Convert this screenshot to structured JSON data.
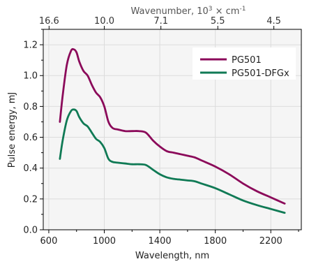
{
  "chart_data": {
    "type": "line",
    "xlabel": "Wavelength, nm",
    "ylabel": "Pulse energy, mJ",
    "xlim": [
      560,
      2420
    ],
    "ylim": [
      0.0,
      1.3
    ],
    "xticks": [
      600,
      1000,
      1400,
      1800,
      2200
    ],
    "xtick_labels": [
      "600",
      "1000",
      "1400",
      "1800",
      "2200"
    ],
    "yticks": [
      0.0,
      0.2,
      0.4,
      0.6,
      0.8,
      1.0,
      1.2
    ],
    "ytick_labels": [
      "0.0",
      "0.2",
      "0.4",
      "0.6",
      "0.8",
      "1.0",
      "1.2"
    ],
    "top_axis": {
      "title_main": "Wavenumber, 10",
      "title_sup": "3",
      "title_mid": " × cm",
      "title_sup2": "-1",
      "ticks_nm": [
        602,
        1000,
        1408,
        1818,
        2222
      ],
      "tick_labels": [
        "16.6",
        "10.0",
        "7.1",
        "5.5",
        "4.5"
      ]
    },
    "grid": true,
    "legend_position": "top-right",
    "series": [
      {
        "name": "PG501",
        "color": "#8b0a5a",
        "x": [
          680,
          700,
          730,
          760,
          780,
          800,
          820,
          850,
          880,
          910,
          940,
          970,
          1000,
          1030,
          1060,
          1100,
          1150,
          1200,
          1250,
          1300,
          1350,
          1400,
          1450,
          1500,
          1550,
          1600,
          1650,
          1700,
          1800,
          1900,
          2000,
          2100,
          2200,
          2300
        ],
        "y": [
          0.7,
          0.87,
          1.07,
          1.16,
          1.17,
          1.15,
          1.09,
          1.03,
          1.0,
          0.94,
          0.89,
          0.86,
          0.8,
          0.7,
          0.66,
          0.65,
          0.64,
          0.64,
          0.64,
          0.63,
          0.58,
          0.54,
          0.51,
          0.5,
          0.49,
          0.48,
          0.47,
          0.45,
          0.41,
          0.36,
          0.3,
          0.25,
          0.21,
          0.17
        ]
      },
      {
        "name": "PG501-DFGx",
        "color": "#107a55",
        "x": [
          680,
          700,
          730,
          760,
          780,
          800,
          820,
          850,
          880,
          910,
          940,
          970,
          1000,
          1030,
          1060,
          1100,
          1150,
          1200,
          1250,
          1300,
          1350,
          1400,
          1450,
          1500,
          1550,
          1600,
          1650,
          1700,
          1800,
          1900,
          2000,
          2100,
          2200,
          2300
        ],
        "y": [
          0.46,
          0.58,
          0.71,
          0.77,
          0.78,
          0.77,
          0.73,
          0.69,
          0.67,
          0.63,
          0.59,
          0.57,
          0.53,
          0.46,
          0.44,
          0.435,
          0.43,
          0.425,
          0.425,
          0.42,
          0.39,
          0.36,
          0.34,
          0.33,
          0.325,
          0.32,
          0.315,
          0.3,
          0.27,
          0.23,
          0.19,
          0.16,
          0.135,
          0.11
        ]
      }
    ]
  }
}
